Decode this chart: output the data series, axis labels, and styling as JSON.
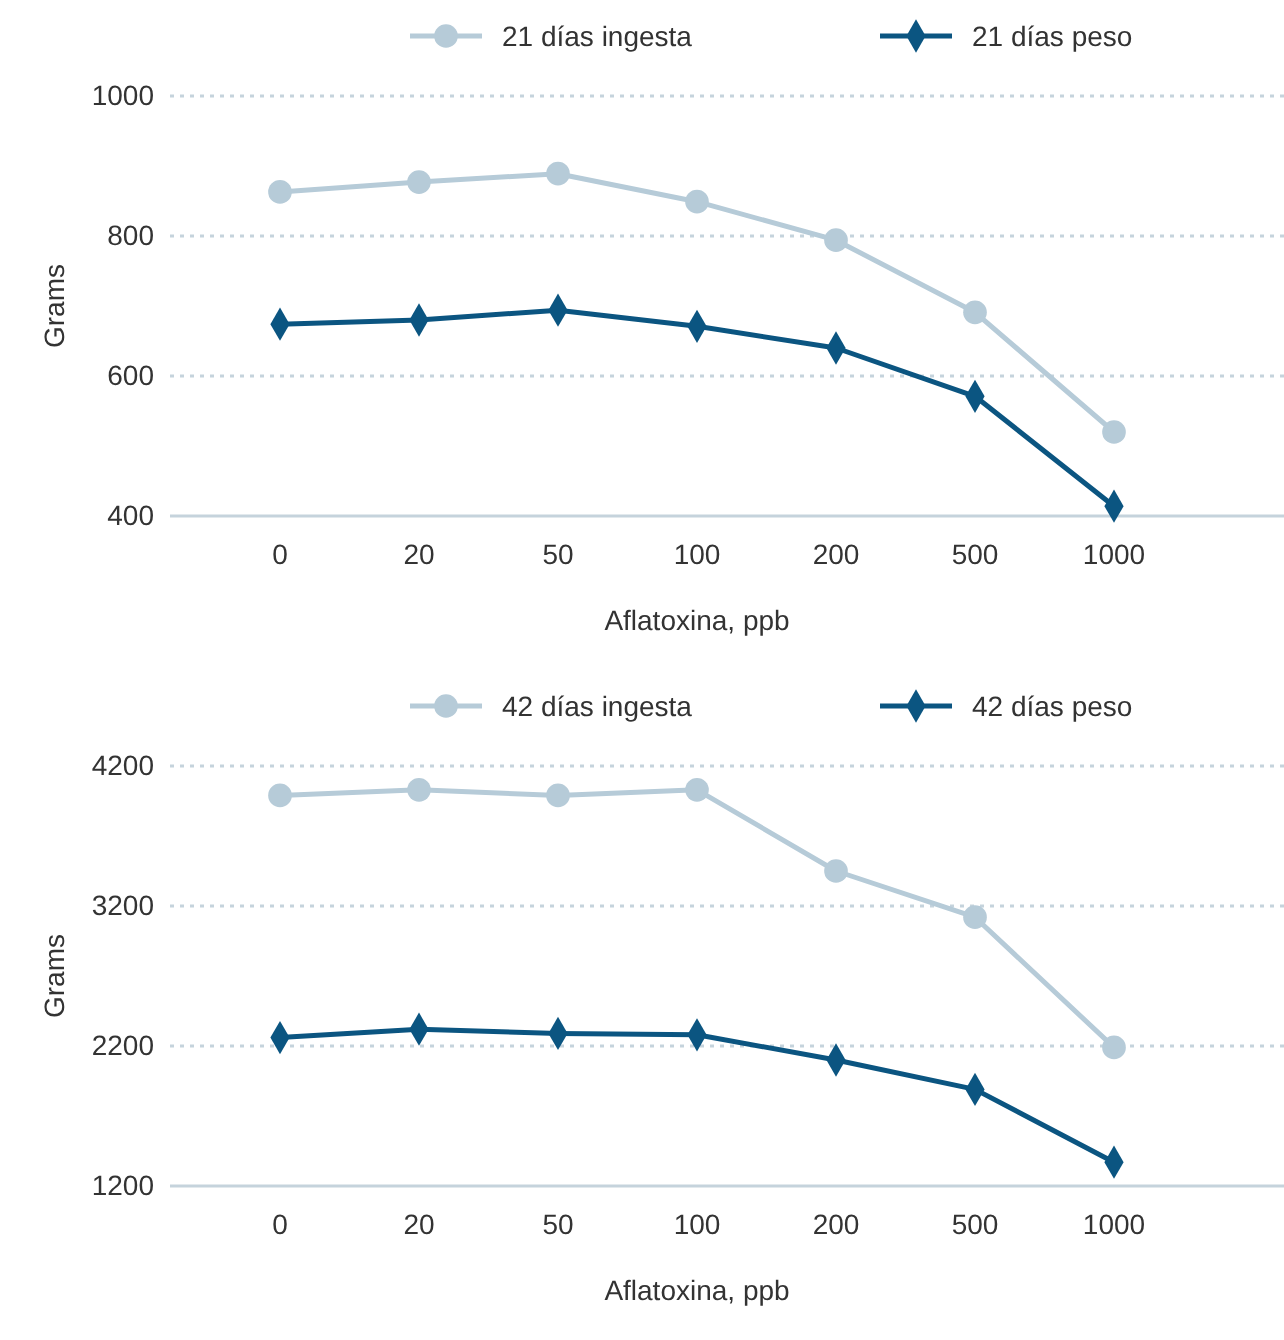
{
  "chart_data": [
    {
      "type": "line",
      "xlabel": "Aflatoxina, ppb",
      "ylabel": "Grams",
      "categories": [
        "0",
        "20",
        "50",
        "100",
        "200",
        "500",
        "1000"
      ],
      "ylim": [
        400,
        1000
      ],
      "yticks": [
        400,
        600,
        800,
        1000
      ],
      "grid": "y",
      "legend": "top",
      "series": [
        {
          "name": "21 días ingesta",
          "color": "#b6cbd8",
          "marker": "circle",
          "values": [
            863,
            877,
            889,
            849,
            794,
            691,
            520
          ]
        },
        {
          "name": "21 días peso",
          "color": "#0b5581",
          "marker": "diamond",
          "values": [
            674,
            680,
            694,
            671,
            640,
            571,
            414
          ]
        }
      ]
    },
    {
      "type": "line",
      "xlabel": "Aflatoxina, ppb",
      "ylabel": "Grams",
      "categories": [
        "0",
        "20",
        "50",
        "100",
        "200",
        "500",
        "1000"
      ],
      "ylim": [
        1200,
        4200
      ],
      "yticks": [
        1200,
        2200,
        3200,
        4200
      ],
      "grid": "y",
      "legend": "top",
      "series": [
        {
          "name": "42 días ingesta",
          "color": "#b6cbd8",
          "marker": "circle",
          "values": [
            3990,
            4030,
            3990,
            4030,
            3450,
            3120,
            2190
          ]
        },
        {
          "name": "42 días peso",
          "color": "#0b5581",
          "marker": "diamond",
          "values": [
            2260,
            2320,
            2290,
            2280,
            2100,
            1890,
            1370
          ]
        }
      ]
    }
  ]
}
